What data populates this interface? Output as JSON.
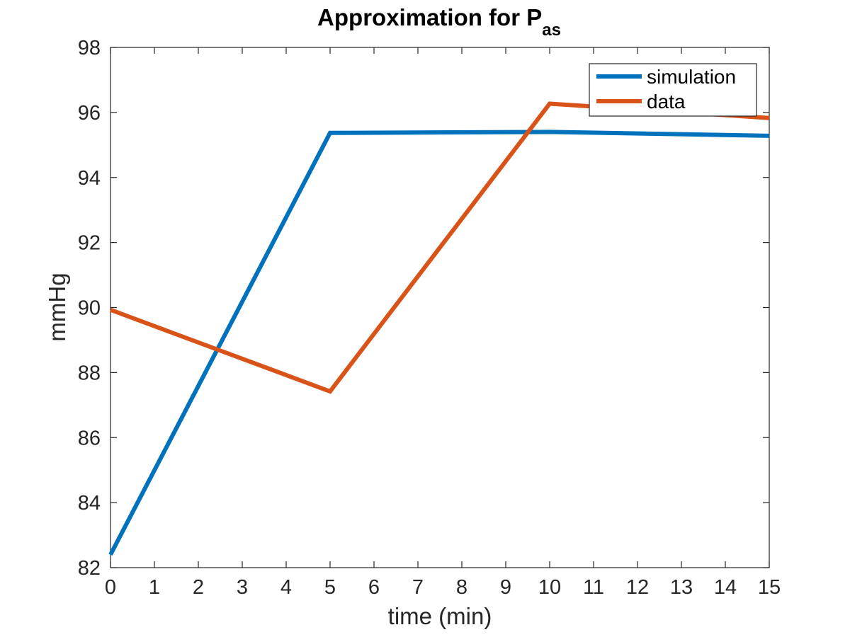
{
  "chart_data": {
    "type": "line",
    "title": "Approximation for P",
    "title_subscript": "as",
    "xlabel": "time (min)",
    "ylabel": "mmHg",
    "xlim": [
      0,
      15
    ],
    "ylim": [
      82,
      98
    ],
    "xticks": [
      0,
      1,
      2,
      3,
      4,
      5,
      6,
      7,
      8,
      9,
      10,
      11,
      12,
      13,
      14,
      15
    ],
    "yticks": [
      82,
      84,
      86,
      88,
      90,
      92,
      94,
      96,
      98
    ],
    "grid": false,
    "legend_position": "top-right",
    "series": [
      {
        "name": "simulation",
        "color": "#0072BD",
        "x": [
          0,
          5,
          10,
          15
        ],
        "y": [
          82.4,
          95.37,
          95.4,
          95.28
        ]
      },
      {
        "name": "data",
        "color": "#D95319",
        "x": [
          0,
          5,
          10,
          15
        ],
        "y": [
          89.93,
          87.42,
          96.27,
          95.83
        ]
      }
    ]
  }
}
